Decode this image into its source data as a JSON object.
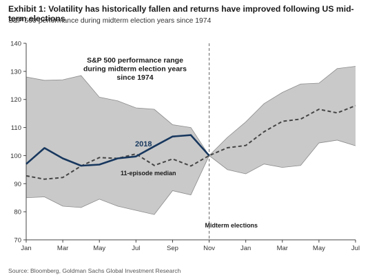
{
  "title": "Exhibit 1: Volatility has historically fallen and returns have improved following US mid-term elections",
  "subtitle": "S&P 500 performance during midterm election years since 1974",
  "source": "Source: Bloomberg, Goldman Sachs Global Investment Research",
  "colors": {
    "band_fill": "#c9c9c9",
    "band_stroke": "#8a8a8a",
    "series_2018": "#17375e",
    "median": "#444444",
    "vline": "#666666"
  },
  "chart_data": {
    "type": "line",
    "x_ticks": [
      "Jan",
      "Mar",
      "May",
      "Jul",
      "Sep",
      "Nov",
      "Jan",
      "Mar",
      "May",
      "Jul"
    ],
    "ylim": [
      70,
      140
    ],
    "y_ticks": [
      70,
      80,
      90,
      100,
      110,
      120,
      130,
      140
    ],
    "grid": false,
    "band": {
      "label": "S&P 500 performance  range during midterm election years since 1974",
      "label_lines": [
        "S&P 500 performance  range",
        "during midterm election years",
        "since 1974"
      ],
      "upper": [
        [
          0,
          128
        ],
        [
          1,
          126.8
        ],
        [
          2,
          127
        ],
        [
          3,
          128.5
        ],
        [
          4,
          120.8
        ],
        [
          5,
          119.5
        ],
        [
          6,
          117
        ],
        [
          7,
          116.5
        ],
        [
          8,
          111
        ],
        [
          9,
          110
        ],
        [
          10,
          100
        ],
        [
          11,
          106.5
        ],
        [
          12,
          112
        ],
        [
          13,
          118.5
        ],
        [
          14,
          122.5
        ],
        [
          15,
          125.5
        ],
        [
          16,
          125.8
        ],
        [
          17,
          131
        ],
        [
          18,
          131.8
        ]
      ],
      "lower": [
        [
          0,
          85
        ],
        [
          1,
          85.3
        ],
        [
          2,
          82
        ],
        [
          3,
          81.5
        ],
        [
          4,
          84.5
        ],
        [
          5,
          82
        ],
        [
          6,
          80.5
        ],
        [
          7,
          79
        ],
        [
          8,
          87.5
        ],
        [
          9,
          86
        ],
        [
          10,
          100
        ],
        [
          11,
          95
        ],
        [
          12,
          93.5
        ],
        [
          13,
          97
        ],
        [
          14,
          95.8
        ],
        [
          15,
          96.5
        ],
        [
          16,
          104.5
        ],
        [
          17,
          105.5
        ],
        [
          18,
          103.5
        ]
      ]
    },
    "series": [
      {
        "name": "2018",
        "values": [
          [
            0,
            97
          ],
          [
            1,
            102.7
          ],
          [
            2,
            99
          ],
          [
            3,
            96.4
          ],
          [
            4,
            96.8
          ],
          [
            5,
            99
          ],
          [
            6,
            99.7
          ],
          [
            7,
            103.3
          ],
          [
            8,
            106.8
          ],
          [
            9,
            107.3
          ],
          [
            10,
            100
          ]
        ]
      },
      {
        "name": "11-episode median",
        "values": [
          [
            0,
            92.8
          ],
          [
            1,
            91.6
          ],
          [
            2,
            92.2
          ],
          [
            3,
            96.3
          ],
          [
            4,
            99.3
          ],
          [
            5,
            99
          ],
          [
            6,
            100.6
          ],
          [
            7,
            96.5
          ],
          [
            8,
            98.8
          ],
          [
            9,
            96.3
          ],
          [
            10,
            100
          ],
          [
            11,
            102.8
          ],
          [
            12,
            103.6
          ],
          [
            13,
            108.5
          ],
          [
            14,
            112.2
          ],
          [
            15,
            113
          ],
          [
            16,
            116.5
          ],
          [
            17,
            115.2
          ],
          [
            18,
            117.8
          ]
        ]
      }
    ],
    "annotation": "Midterm elections",
    "annotation_x": 10
  }
}
